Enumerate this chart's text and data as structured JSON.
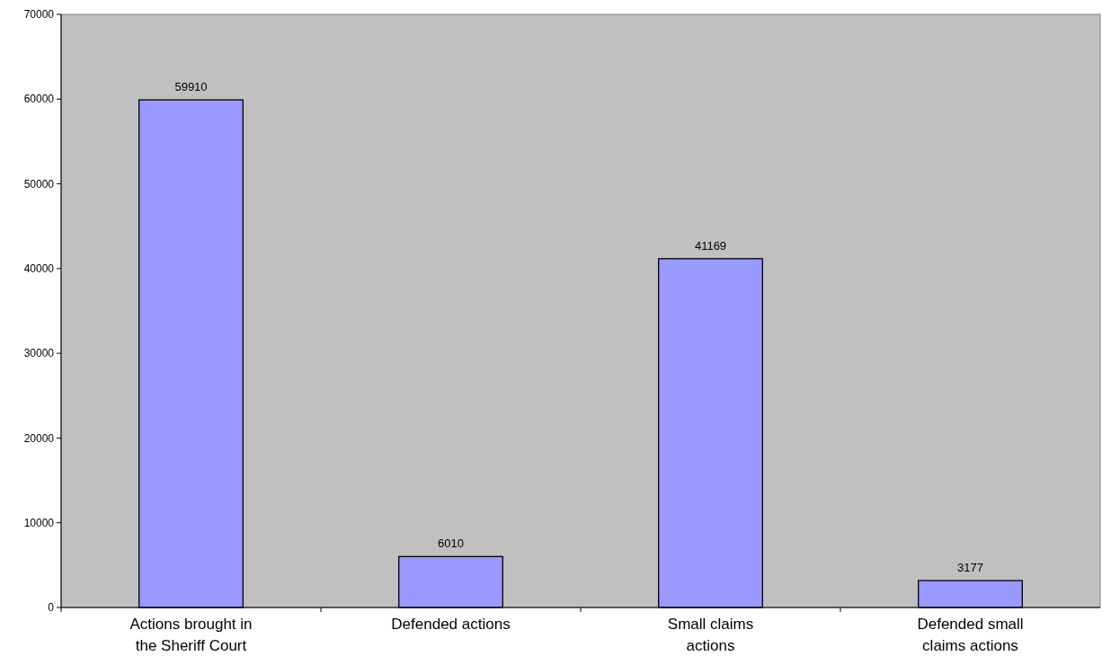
{
  "chart_data": {
    "type": "bar",
    "categories": [
      "Actions brought in the Sheriff Court",
      "Defended actions",
      "Small claims actions",
      "Defended small claims actions"
    ],
    "values": [
      59910,
      6010,
      41169,
      3177
    ],
    "color": "#9999ff",
    "ylim": [
      0,
      70000
    ],
    "yticks": [
      0,
      10000,
      20000,
      30000,
      40000,
      50000,
      60000,
      70000
    ],
    "data_labels": true
  }
}
